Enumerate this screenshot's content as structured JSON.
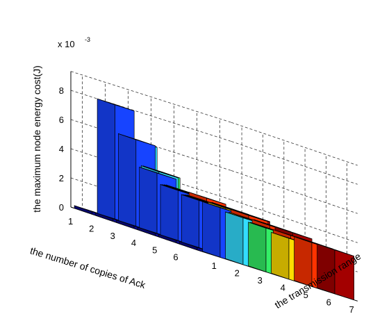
{
  "chart_data": {
    "type": "bar3d",
    "title": "",
    "zlabel": "the maximum node energy cost(J)",
    "xlabel": "the transmission range",
    "ylabel": "the number of copies of Ack",
    "scale_note": "x 10",
    "scale_exp": "-3",
    "x_ticks": [
      "1",
      "2",
      "3",
      "4",
      "5",
      "6",
      "7"
    ],
    "y_ticks": [
      "1",
      "2",
      "3",
      "4",
      "5",
      "6"
    ],
    "z_ticks": [
      "0",
      "2",
      "4",
      "6",
      "8"
    ],
    "zlim": [
      0,
      8
    ],
    "grid": true,
    "unit_multiplier": 0.001,
    "colors_by_range": [
      "#0a0a8c",
      "#1744ff",
      "#33ddff",
      "#33ee66",
      "#ffdd00",
      "#ff3300",
      "#a30000"
    ],
    "values": [
      [
        0,
        8.0,
        6.0,
        4.4,
        3.6,
        3.6,
        3.4
      ],
      [
        0,
        6.1,
        4.4,
        3.6,
        3.4,
        3.4,
        3.4
      ],
      [
        0,
        4.3,
        3.6,
        3.4,
        3.4,
        3.4,
        3.2
      ],
      [
        0,
        3.6,
        3.4,
        3.2,
        3.2,
        3.2,
        3.2
      ],
      [
        0,
        3.4,
        3.2,
        3.0,
        3.0,
        3.0,
        3.0
      ],
      [
        0,
        3.4,
        3.2,
        3.0,
        2.8,
        3.0,
        3.0
      ]
    ]
  }
}
